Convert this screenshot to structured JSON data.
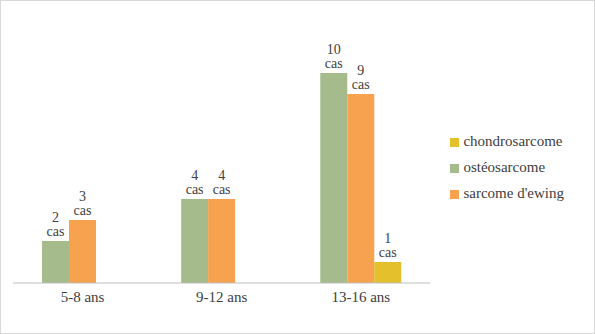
{
  "chart_data": {
    "type": "bar",
    "categories": [
      "5-8 ans",
      "9-12 ans",
      "13-16 ans"
    ],
    "series": [
      {
        "name": "ostéosarcome",
        "color": "#a5bb8c",
        "values": [
          2,
          4,
          10
        ],
        "value_labels": [
          "2 cas",
          "4 cas",
          "10 cas"
        ]
      },
      {
        "name": "sarcome d'ewing",
        "color": "#f6a24e",
        "values": [
          3,
          4,
          9
        ],
        "value_labels": [
          "3 cas",
          "4 cas",
          "9 cas"
        ]
      },
      {
        "name": "chondrosarcome",
        "color": "#e3c02c",
        "values": [
          null,
          null,
          1
        ],
        "value_labels": [
          null,
          null,
          "1 cas"
        ]
      }
    ],
    "data_labels": true,
    "tick_labels": "x",
    "grid": false,
    "legend": "right"
  }
}
